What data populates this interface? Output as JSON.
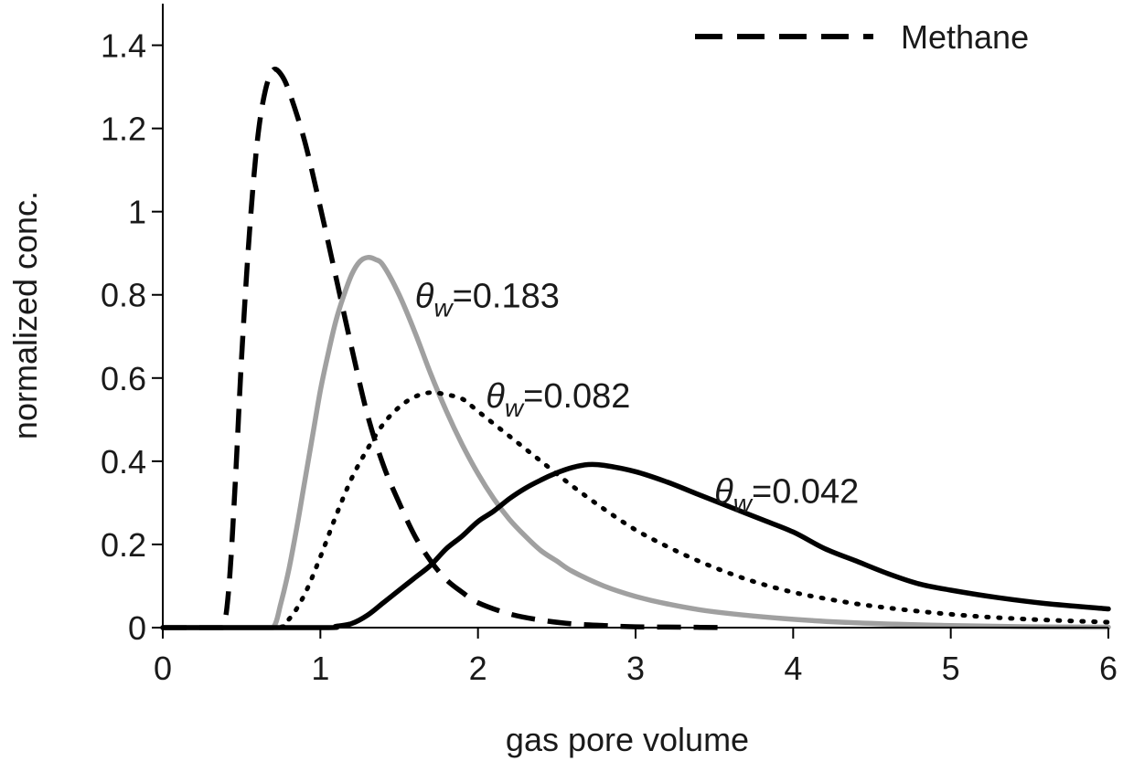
{
  "chart_data": {
    "type": "line",
    "title": "",
    "xlabel": "gas pore volume",
    "ylabel": "normalized conc.",
    "xlim": [
      0,
      6
    ],
    "ylim": [
      0,
      1.5
    ],
    "x_ticks": [
      0,
      1,
      2,
      3,
      4,
      5,
      6
    ],
    "y_ticks": [
      0,
      0.2,
      0.4,
      0.6,
      0.8,
      1,
      1.2,
      1.4
    ],
    "x_tick_labels": [
      "0",
      "1",
      "2",
      "3",
      "4",
      "5",
      "6"
    ],
    "y_tick_labels": [
      "0",
      "0.2",
      "0.4",
      "0.6",
      "0.8",
      "1",
      "1.2",
      "1.4"
    ],
    "grid": false,
    "legend": {
      "position": "top-right",
      "entries": [
        {
          "label": "Methane",
          "style": "dashed",
          "color": "#000000"
        }
      ]
    },
    "series": [
      {
        "name": "Methane",
        "style": "dashed",
        "color": "#000000",
        "points": [
          [
            0,
            0
          ],
          [
            0.3,
            0
          ],
          [
            0.38,
            0
          ],
          [
            0.42,
            0.1
          ],
          [
            0.46,
            0.35
          ],
          [
            0.5,
            0.65
          ],
          [
            0.55,
            0.95
          ],
          [
            0.6,
            1.17
          ],
          [
            0.65,
            1.29
          ],
          [
            0.7,
            1.34
          ],
          [
            0.75,
            1.33
          ],
          [
            0.8,
            1.29
          ],
          [
            0.9,
            1.17
          ],
          [
            1.0,
            1.01
          ],
          [
            1.1,
            0.84
          ],
          [
            1.2,
            0.67
          ],
          [
            1.3,
            0.51
          ],
          [
            1.4,
            0.39
          ],
          [
            1.5,
            0.3
          ],
          [
            1.6,
            0.22
          ],
          [
            1.7,
            0.16
          ],
          [
            1.8,
            0.115
          ],
          [
            1.9,
            0.085
          ],
          [
            2.0,
            0.06
          ],
          [
            2.2,
            0.033
          ],
          [
            2.4,
            0.018
          ],
          [
            2.6,
            0.009
          ],
          [
            2.8,
            0.005
          ],
          [
            3.0,
            0.002
          ],
          [
            3.3,
            0.001
          ],
          [
            3.6,
            0
          ]
        ]
      },
      {
        "name": "",
        "style": "solid",
        "color": "#a0a0a0",
        "points": [
          [
            0,
            0
          ],
          [
            0.6,
            0
          ],
          [
            0.7,
            0
          ],
          [
            0.75,
            0.06
          ],
          [
            0.8,
            0.14
          ],
          [
            0.85,
            0.24
          ],
          [
            0.9,
            0.35
          ],
          [
            0.95,
            0.46
          ],
          [
            1.0,
            0.57
          ],
          [
            1.05,
            0.66
          ],
          [
            1.1,
            0.74
          ],
          [
            1.15,
            0.8
          ],
          [
            1.2,
            0.85
          ],
          [
            1.25,
            0.88
          ],
          [
            1.3,
            0.89
          ],
          [
            1.35,
            0.885
          ],
          [
            1.4,
            0.87
          ],
          [
            1.5,
            0.8
          ],
          [
            1.6,
            0.71
          ],
          [
            1.7,
            0.61
          ],
          [
            1.8,
            0.52
          ],
          [
            1.9,
            0.44
          ],
          [
            2.0,
            0.37
          ],
          [
            2.1,
            0.31
          ],
          [
            2.2,
            0.26
          ],
          [
            2.3,
            0.22
          ],
          [
            2.4,
            0.185
          ],
          [
            2.5,
            0.16
          ],
          [
            2.6,
            0.135
          ],
          [
            2.8,
            0.1
          ],
          [
            3.0,
            0.075
          ],
          [
            3.2,
            0.057
          ],
          [
            3.5,
            0.038
          ],
          [
            4.0,
            0.02
          ],
          [
            4.5,
            0.01
          ],
          [
            5.0,
            0.005
          ],
          [
            5.5,
            0.002
          ],
          [
            6.0,
            0.001
          ]
        ]
      },
      {
        "name": "",
        "style": "dotted",
        "color": "#000000",
        "points": [
          [
            0,
            0
          ],
          [
            0.7,
            0
          ],
          [
            0.8,
            0.02
          ],
          [
            0.9,
            0.08
          ],
          [
            1.0,
            0.17
          ],
          [
            1.1,
            0.27
          ],
          [
            1.2,
            0.36
          ],
          [
            1.3,
            0.43
          ],
          [
            1.4,
            0.49
          ],
          [
            1.5,
            0.53
          ],
          [
            1.6,
            0.555
          ],
          [
            1.7,
            0.565
          ],
          [
            1.8,
            0.56
          ],
          [
            1.9,
            0.55
          ],
          [
            2.0,
            0.52
          ],
          [
            2.2,
            0.46
          ],
          [
            2.4,
            0.4
          ],
          [
            2.6,
            0.34
          ],
          [
            2.8,
            0.285
          ],
          [
            3.0,
            0.235
          ],
          [
            3.2,
            0.195
          ],
          [
            3.4,
            0.16
          ],
          [
            3.6,
            0.13
          ],
          [
            3.8,
            0.105
          ],
          [
            4.0,
            0.085
          ],
          [
            4.2,
            0.07
          ],
          [
            4.5,
            0.052
          ],
          [
            5.0,
            0.032
          ],
          [
            5.5,
            0.02
          ],
          [
            6.0,
            0.013
          ]
        ]
      },
      {
        "name": "",
        "style": "solid",
        "color": "#000000",
        "points": [
          [
            0,
            0
          ],
          [
            1.0,
            0
          ],
          [
            1.1,
            0.003
          ],
          [
            1.2,
            0.01
          ],
          [
            1.3,
            0.03
          ],
          [
            1.4,
            0.06
          ],
          [
            1.5,
            0.09
          ],
          [
            1.6,
            0.12
          ],
          [
            1.7,
            0.15
          ],
          [
            1.8,
            0.19
          ],
          [
            1.9,
            0.22
          ],
          [
            2.0,
            0.255
          ],
          [
            2.1,
            0.28
          ],
          [
            2.2,
            0.31
          ],
          [
            2.3,
            0.335
          ],
          [
            2.4,
            0.355
          ],
          [
            2.5,
            0.372
          ],
          [
            2.6,
            0.385
          ],
          [
            2.7,
            0.392
          ],
          [
            2.8,
            0.39
          ],
          [
            3.0,
            0.375
          ],
          [
            3.2,
            0.35
          ],
          [
            3.4,
            0.32
          ],
          [
            3.6,
            0.29
          ],
          [
            3.8,
            0.26
          ],
          [
            4.0,
            0.23
          ],
          [
            4.2,
            0.19
          ],
          [
            4.4,
            0.16
          ],
          [
            4.6,
            0.13
          ],
          [
            4.8,
            0.105
          ],
          [
            5.0,
            0.09
          ],
          [
            5.3,
            0.072
          ],
          [
            5.6,
            0.058
          ],
          [
            6.0,
            0.045
          ]
        ]
      }
    ],
    "annotations": [
      {
        "theta_symbol": "θ",
        "subscript": "w",
        "value_text": "=0.183",
        "x": 1.6,
        "y": 0.8
      },
      {
        "theta_symbol": "θ",
        "subscript": "w",
        "value_text": "=0.082",
        "x": 2.05,
        "y": 0.56
      },
      {
        "theta_symbol": "θ",
        "subscript": "w",
        "value_text": "=0.042",
        "x": 3.5,
        "y": 0.33
      }
    ]
  }
}
